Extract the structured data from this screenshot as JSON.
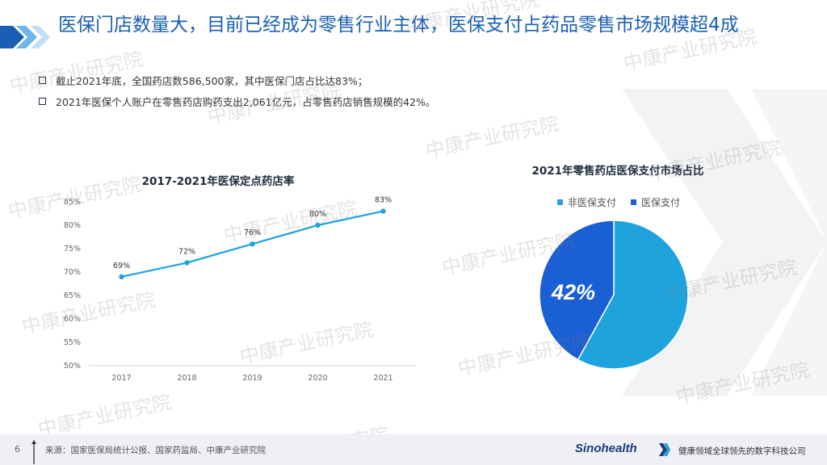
{
  "slide": {
    "title": "医保门店数量大，目前已经成为零售行业主体，医保支付占药品零售市场规模超4成",
    "bullets": [
      "截止2021年底，全国药店数586,500家，其中医保门店占比达83%；",
      "2021年医保个人账户在零售药店购药支出2,061亿元，占零售药店销售规模的42%。"
    ]
  },
  "chart_data": [
    {
      "type": "line",
      "title": "2017-2021年医保定点药店率",
      "x": [
        "2017",
        "2018",
        "2019",
        "2020",
        "2021"
      ],
      "values": [
        69,
        72,
        76,
        80,
        83
      ],
      "data_labels": [
        "69%",
        "72%",
        "76%",
        "80%",
        "83%"
      ],
      "y_ticks": [
        "50%",
        "55%",
        "60%",
        "65%",
        "70%",
        "75%",
        "80%",
        "85%"
      ],
      "ylim": [
        50,
        85
      ],
      "color": "#1fa3dc",
      "grid": false
    },
    {
      "type": "pie",
      "title": "2021年零售药店医保支付市场占比",
      "categories": [
        "非医保支付",
        "医保支付"
      ],
      "values": [
        58,
        42
      ],
      "colors": [
        "#1fa3dc",
        "#1a5fd4"
      ],
      "data_label": "42%",
      "legend": "top"
    }
  ],
  "watermark": {
    "text": "中康产业研究院"
  },
  "footer": {
    "page": "6",
    "source": "来源：国家医保局统计公报、国家药监局、中康产业研究院",
    "brand": "Sinohealth",
    "tagline": "健康领域全球领先的数字科技公司"
  },
  "colors": {
    "title": "#1a5fb4",
    "accent": "#1fa3dc",
    "dark_blue": "#1a5fd4"
  }
}
